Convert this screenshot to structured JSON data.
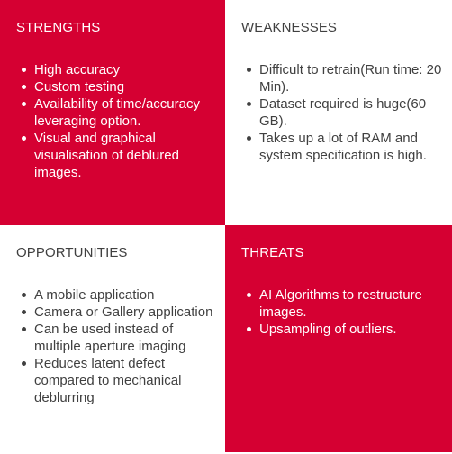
{
  "colors": {
    "accent": "#d50032",
    "background": "#ffffff",
    "text_dark": "#404040",
    "text_light": "#ffffff"
  },
  "swot": {
    "strengths": {
      "title": "STRENGTHS",
      "items": [
        "High accuracy",
        "Custom testing",
        "Availability of time/accuracy leveraging option.",
        "Visual and graphical visualisation of deblured images."
      ]
    },
    "weaknesses": {
      "title": "WEAKNESSES",
      "items": [
        "Difficult to retrain(Run time: 20 Min).",
        "Dataset required is huge(60 GB).",
        "Takes up a lot of RAM and system specification is high."
      ]
    },
    "opportunities": {
      "title": "OPPORTUNITIES",
      "items": [
        "A mobile application",
        "Camera or Gallery application",
        "Can be used instead of multiple aperture imaging",
        "Reduces latent defect compared to mechanical deblurring"
      ]
    },
    "threats": {
      "title": "THREATS",
      "items": [
        "AI Algorithms to restructure images.",
        "Upsampling of outliers."
      ]
    }
  }
}
